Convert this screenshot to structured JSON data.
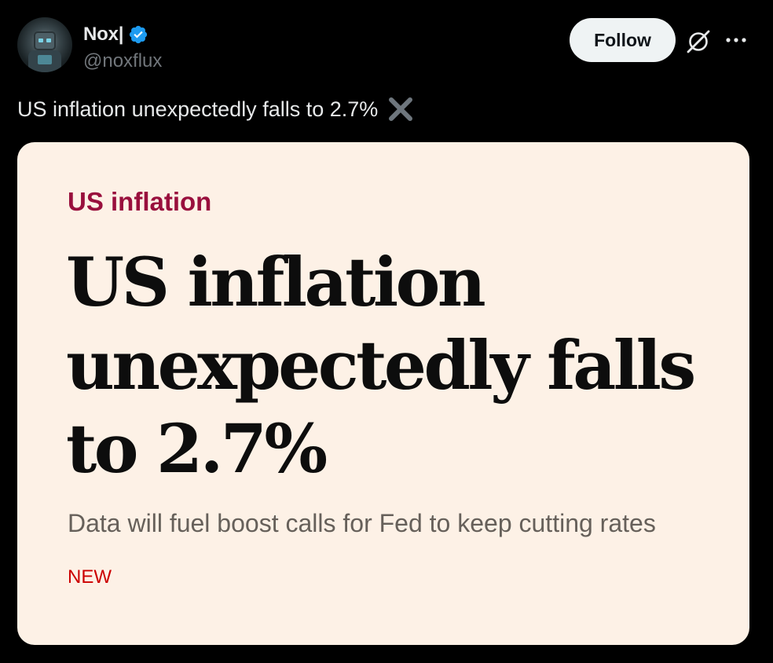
{
  "author": {
    "display_name": "Nox|",
    "handle": "@noxflux",
    "verified": true,
    "avatar_icon": "robot-avatar"
  },
  "actions": {
    "follow_label": "Follow",
    "grok_icon": "grok-icon",
    "more_icon": "more-icon"
  },
  "tweet": {
    "text": "US inflation unexpectedly falls to 2.7%",
    "emoji": "cross-mark-icon"
  },
  "card": {
    "kicker": "US inflation",
    "headline": "US inflation unexpectedly falls to 2.7%",
    "standfirst": "Data will fuel boost calls for Fed to keep cutting rates",
    "badge": "NEW"
  },
  "colors": {
    "background": "#000000",
    "card_background": "#fdf1e6",
    "kicker": "#990f3d",
    "badge": "#cc0000",
    "verified": "#1d9bf0"
  }
}
